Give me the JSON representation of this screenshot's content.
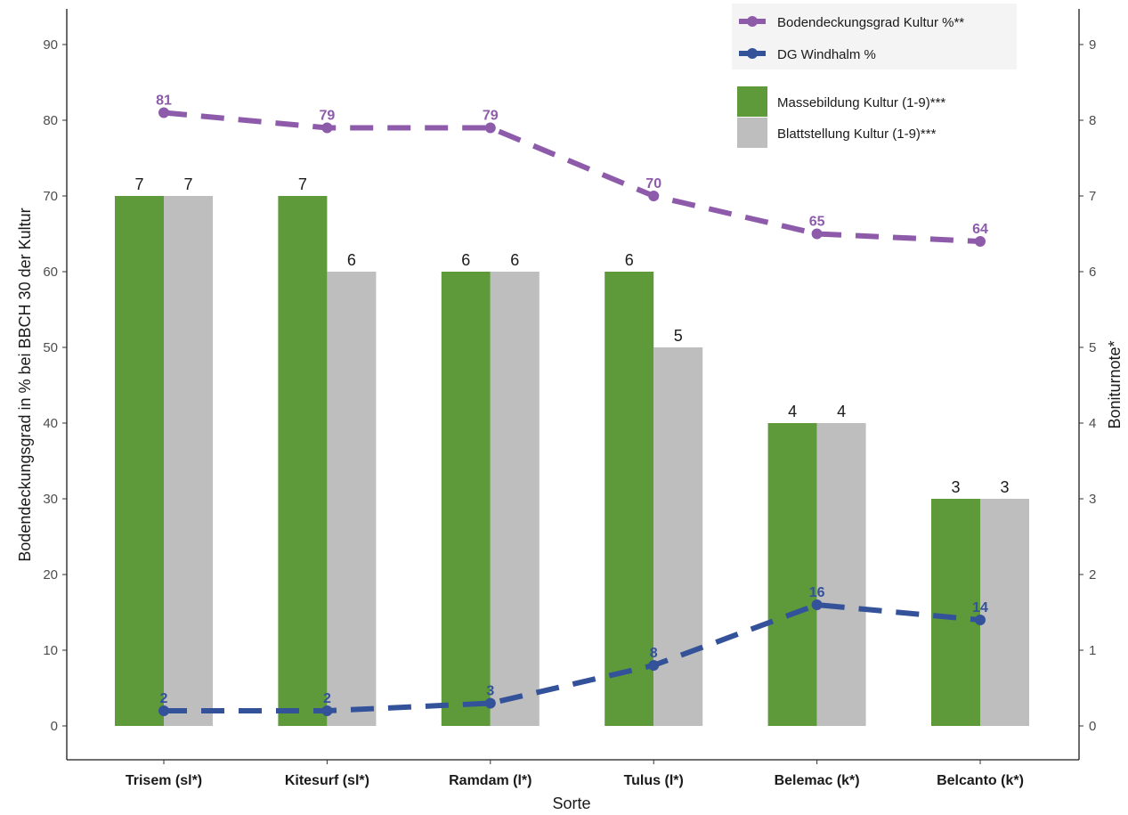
{
  "chart_data": {
    "type": "bar",
    "x_title": "Sorte",
    "y_left_title": "Bodendeckungsgrad in % bei BBCH 30 der Kultur",
    "y_right_title": "Boniturnote*",
    "ylim_left": [
      0,
      90
    ],
    "ylim_right": [
      0,
      9
    ],
    "y_left_ticks": [
      "0",
      "10",
      "20",
      "30",
      "40",
      "50",
      "60",
      "70",
      "80",
      "90"
    ],
    "y_right_ticks": [
      "0",
      "1",
      "2",
      "3",
      "4",
      "5",
      "6",
      "7",
      "8",
      "9"
    ],
    "grid": false,
    "legend_position": "top-right",
    "categories": [
      "Trisem (sl*)",
      "Kitesurf (sl*)",
      "Ramdam (l*)",
      "Tulus (l*)",
      "Belemac (k*)",
      "Belcanto (k*)"
    ],
    "bar_series": [
      {
        "name": "Massebildung Kultur (1-9)***",
        "color": "#5f9a3a",
        "values": [
          7,
          7,
          6,
          6,
          4,
          3
        ],
        "labels": [
          "7",
          "7",
          "6",
          "6",
          "4",
          "3"
        ]
      },
      {
        "name": "Blattstellung Kultur (1-9)***",
        "color": "#bebebe",
        "values": [
          7,
          6,
          6,
          5,
          4,
          3
        ],
        "labels": [
          "7",
          "6",
          "6",
          "5",
          "4",
          "3"
        ]
      }
    ],
    "line_series": [
      {
        "name": "Bodendeckungsgrad Kultur %**",
        "color": "#8e5bab",
        "values": [
          81,
          79,
          79,
          70,
          65,
          64
        ],
        "labels": [
          "81",
          "79",
          "79",
          "70",
          "65",
          "64"
        ],
        "style": "dashed"
      },
      {
        "name": "DG Windhalm %",
        "color": "#34529a",
        "values": [
          2,
          2,
          3,
          8,
          16,
          14
        ],
        "labels": [
          "2",
          "2",
          "3",
          "8",
          "16",
          "14"
        ],
        "style": "dashed"
      }
    ]
  }
}
